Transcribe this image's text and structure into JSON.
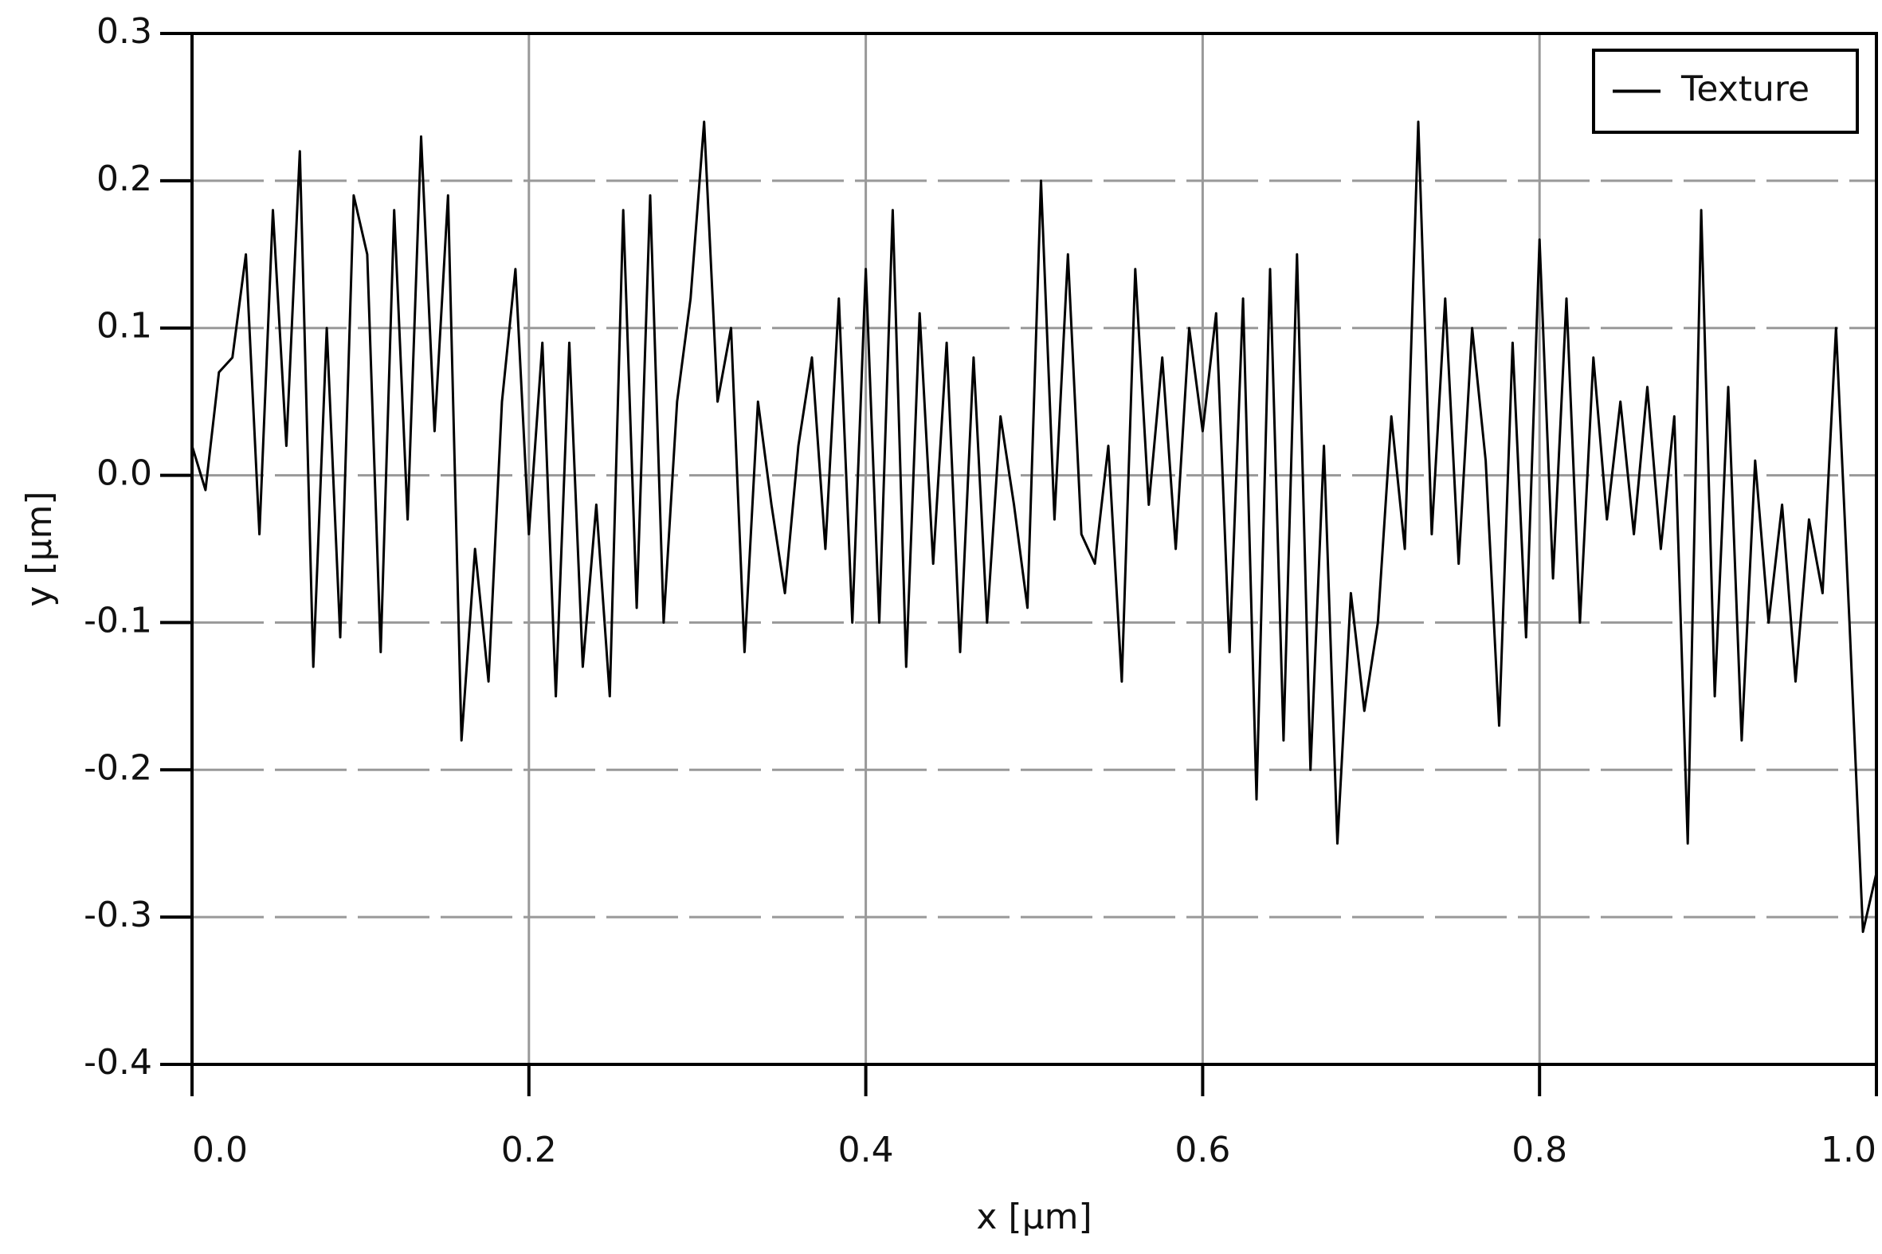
{
  "chart_data": {
    "type": "line",
    "xlabel": "x [µm]",
    "ylabel": "y [µm]",
    "xlim": [
      0,
      1
    ],
    "ylim": [
      -0.4,
      0.3
    ],
    "xticks": [
      {
        "value": 0,
        "label": "0.0"
      },
      0.2,
      0.4,
      0.6,
      0.8,
      {
        "value": 1,
        "label": "1.0"
      }
    ],
    "yticks": [
      -0.4,
      -0.3,
      -0.2,
      -0.1,
      {
        "value": 0,
        "label": "0.0"
      },
      0.1,
      0.2,
      0.3
    ],
    "grid": true,
    "legend": "upper right",
    "x": [
      0.0,
      0.008,
      0.016,
      0.024,
      0.032,
      0.04,
      0.048,
      0.056,
      0.064,
      0.072,
      0.08,
      0.088,
      0.096,
      0.104,
      0.112,
      0.12,
      0.128,
      0.136,
      0.144,
      0.152,
      0.16,
      0.168,
      0.176,
      0.184,
      0.192,
      0.2,
      0.208,
      0.216,
      0.224,
      0.232,
      0.24,
      0.248,
      0.256,
      0.264,
      0.272,
      0.28,
      0.288,
      0.296,
      0.304,
      0.312,
      0.32,
      0.328,
      0.336,
      0.344,
      0.352,
      0.36,
      0.368,
      0.376,
      0.384,
      0.392,
      0.4,
      0.408,
      0.416,
      0.424,
      0.432,
      0.44,
      0.448,
      0.456,
      0.464,
      0.472,
      0.48,
      0.488,
      0.496,
      0.504,
      0.512,
      0.52,
      0.528,
      0.536,
      0.544,
      0.552,
      0.56,
      0.568,
      0.576,
      0.584,
      0.592,
      0.6,
      0.608,
      0.616,
      0.624,
      0.632,
      0.64,
      0.648,
      0.656,
      0.664,
      0.672,
      0.68,
      0.688,
      0.696,
      0.704,
      0.712,
      0.72,
      0.728,
      0.736,
      0.744,
      0.752,
      0.76,
      0.768,
      0.776,
      0.784,
      0.792,
      0.8,
      0.808,
      0.816,
      0.824,
      0.832,
      0.84,
      0.848,
      0.856,
      0.864,
      0.872,
      0.88,
      0.888,
      0.896,
      0.904,
      0.912,
      0.92,
      0.928,
      0.936,
      0.944,
      0.952,
      0.96,
      0.968,
      0.976,
      0.984,
      0.992,
      1.0
    ],
    "series": [
      {
        "name": "Texture",
        "color": "#000000",
        "values": [
          0.02,
          -0.01,
          0.07,
          0.08,
          0.15,
          -0.04,
          0.18,
          0.02,
          0.22,
          -0.13,
          0.1,
          -0.11,
          0.19,
          0.15,
          -0.12,
          0.18,
          -0.03,
          0.23,
          0.03,
          0.19,
          -0.18,
          -0.05,
          -0.14,
          0.05,
          0.14,
          -0.04,
          0.09,
          -0.15,
          0.09,
          -0.13,
          -0.02,
          -0.15,
          0.18,
          -0.09,
          0.19,
          -0.1,
          0.05,
          0.12,
          0.24,
          0.05,
          0.1,
          -0.12,
          0.05,
          -0.02,
          -0.08,
          0.02,
          0.08,
          -0.05,
          0.12,
          -0.1,
          0.14,
          -0.1,
          0.18,
          -0.13,
          0.11,
          -0.06,
          0.09,
          -0.12,
          0.08,
          -0.1,
          0.04,
          -0.02,
          -0.09,
          0.2,
          -0.03,
          0.15,
          -0.04,
          -0.06,
          0.02,
          -0.14,
          0.14,
          -0.02,
          0.08,
          -0.05,
          0.1,
          0.03,
          0.11,
          -0.12,
          0.12,
          -0.22,
          0.14,
          -0.18,
          0.15,
          -0.2,
          0.02,
          -0.25,
          -0.08,
          -0.16,
          -0.1,
          0.04,
          -0.05,
          0.24,
          -0.04,
          0.12,
          -0.06,
          0.1,
          0.01,
          -0.17,
          0.09,
          -0.11,
          0.16,
          -0.07,
          0.12,
          -0.1,
          0.08,
          -0.03,
          0.05,
          -0.04,
          0.06,
          -0.05,
          0.04,
          -0.25,
          0.18,
          -0.15,
          0.06,
          -0.18,
          0.01,
          -0.1,
          -0.02,
          -0.14,
          -0.03,
          -0.08,
          0.1,
          -0.1,
          -0.31,
          -0.27
        ]
      }
    ]
  }
}
